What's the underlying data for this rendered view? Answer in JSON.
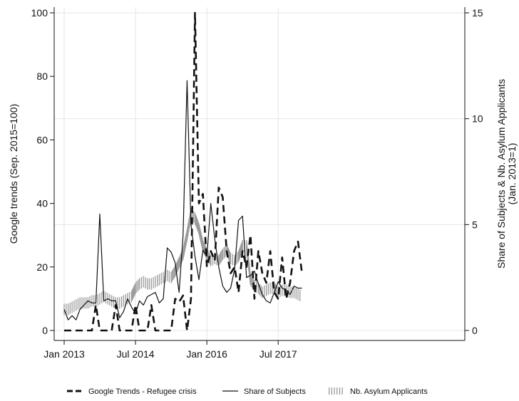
{
  "chart_data": {
    "type": "line",
    "x_tick_labels": [
      "Jan 2013",
      "Jul 2014",
      "Jan 2016",
      "Jul 2017"
    ],
    "x_ticks": [
      0,
      18,
      36,
      54
    ],
    "x_range": [
      0,
      60
    ],
    "y_left": {
      "title": "Google trends (Sep. 2015=100)",
      "range": [
        0,
        100
      ],
      "ticks": [
        0,
        20,
        40,
        60,
        80,
        100
      ],
      "tick_labels": [
        "0",
        "20",
        "40",
        "60",
        "80",
        "100"
      ]
    },
    "y_right": {
      "title_line1": "Share of Subjects & Nb. Asylum Applicants",
      "title_line2": "(Jan. 2013=1)",
      "range": [
        0,
        15
      ],
      "ticks": [
        0,
        5,
        10,
        15
      ],
      "tick_labels": [
        "0",
        "5",
        "10",
        "15"
      ]
    },
    "gridlines": "right-axis",
    "legend_position": "bottom",
    "series": [
      {
        "name": "Google Trends - Refugee crisis",
        "axis": "left",
        "style": "dashed",
        "values": [
          0,
          0,
          0,
          0,
          0,
          0,
          0,
          0,
          8,
          0,
          0,
          0,
          0,
          8,
          0,
          0,
          0,
          0,
          8,
          0,
          0,
          0,
          8,
          0,
          0,
          0,
          0,
          0,
          10,
          9,
          11,
          0,
          10,
          100,
          40,
          43,
          20,
          25,
          22,
          45,
          42,
          25,
          18,
          20,
          12,
          25,
          20,
          30,
          10,
          25,
          18,
          15,
          25,
          12,
          10,
          23,
          10,
          15,
          25,
          28,
          18
        ],
        "values_source_note": ""
      },
      {
        "name": "Share of Subjects",
        "axis": "right",
        "style": "solid",
        "values": [
          1.0,
          0.5,
          0.7,
          0.5,
          1.0,
          1.2,
          1.4,
          1.3,
          1.3,
          5.5,
          1.4,
          1.5,
          1.4,
          1.4,
          0.6,
          0.9,
          1.5,
          1.1,
          0.8,
          1.4,
          1.2,
          1.6,
          1.7,
          1.8,
          1.3,
          1.5,
          3.9,
          3.7,
          3.2,
          1.8,
          4.5,
          11.8,
          5.0,
          3.5,
          2.4,
          3.8,
          3.5,
          6.0,
          4.3,
          3.0,
          2.1,
          1.8,
          2.0,
          2.9,
          5.2,
          5.4,
          2.5,
          2.6,
          2.8,
          2.2,
          1.7,
          1.4,
          1.3,
          1.8,
          2.3,
          2.0,
          1.9,
          1.7,
          2.1,
          2.0,
          2.0
        ],
        "values_source_note": ""
      },
      {
        "name": "Nb. Asylum Applicants",
        "axis": "right",
        "style": "hatched",
        "values": [
          1.0,
          1.0,
          1.1,
          1.2,
          1.3,
          1.3,
          1.3,
          1.4,
          1.4,
          1.5,
          1.6,
          1.5,
          1.4,
          1.3,
          1.3,
          1.4,
          1.5,
          1.6,
          2.0,
          2.2,
          2.3,
          2.2,
          2.2,
          2.3,
          2.4,
          2.5,
          2.6,
          2.5,
          2.8,
          3.2,
          3.6,
          4.5,
          5.5,
          5.3,
          4.8,
          4.0,
          3.6,
          3.3,
          3.4,
          3.3,
          3.6,
          3.8,
          3.4,
          3.3,
          3.5,
          4.0,
          4.0,
          2.4,
          2.1,
          2.0,
          1.8,
          1.9,
          2.0,
          2.0,
          1.8,
          1.9,
          1.9,
          1.8,
          1.8,
          1.7,
          1.6
        ],
        "values_source_note": ""
      }
    ]
  }
}
